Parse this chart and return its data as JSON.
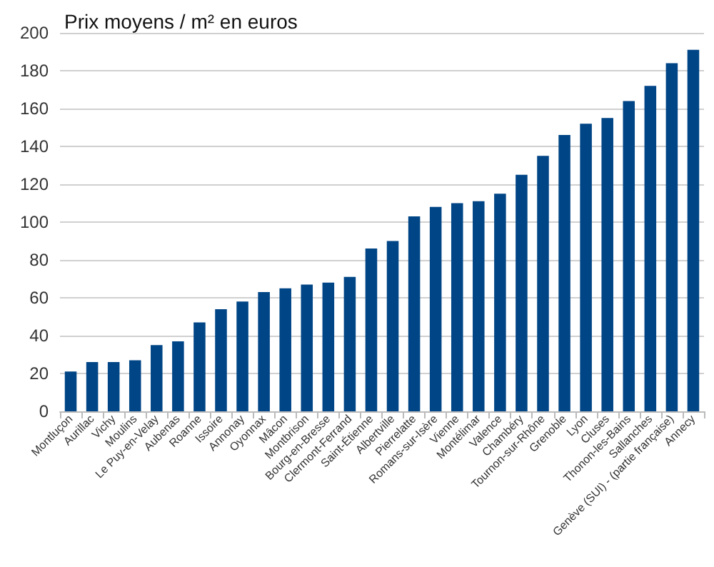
{
  "chart_data": {
    "type": "bar",
    "title": "Prix moyens / m² en euros",
    "categories": [
      "Montluçon",
      "Aurillac",
      "Vichy",
      "Moulins",
      "Le Puy-en-Velay",
      "Aubenas",
      "Roanne",
      "Issoire",
      "Annonay",
      "Oyonnax",
      "Mâcon",
      "Montbrison",
      "Bourg-en-Bresse",
      "Clermont-Ferrand",
      "Saint-Étienne",
      "Albertville",
      "Pierrelatte",
      "Romans-sur-Isère",
      "Vienne",
      "Montélimar",
      "Valence",
      "Chambéry",
      "Tournon-sur-Rhône",
      "Grenoble",
      "Lyon",
      "Cluses",
      "Thonon-les-Bains",
      "Sallanches",
      "Genève (SUI) - (partie française)",
      "Annecy"
    ],
    "values": [
      21,
      26,
      26,
      27,
      35,
      37,
      47,
      54,
      58,
      63,
      65,
      67,
      68,
      71,
      86,
      90,
      103,
      108,
      110,
      111,
      115,
      125,
      135,
      146,
      152,
      155,
      164,
      172,
      184,
      191
    ],
    "color": "#004586",
    "ylim": [
      0,
      200
    ],
    "yticks": [
      0,
      20,
      40,
      60,
      80,
      100,
      120,
      140,
      160,
      180,
      200
    ],
    "grid": "y"
  }
}
